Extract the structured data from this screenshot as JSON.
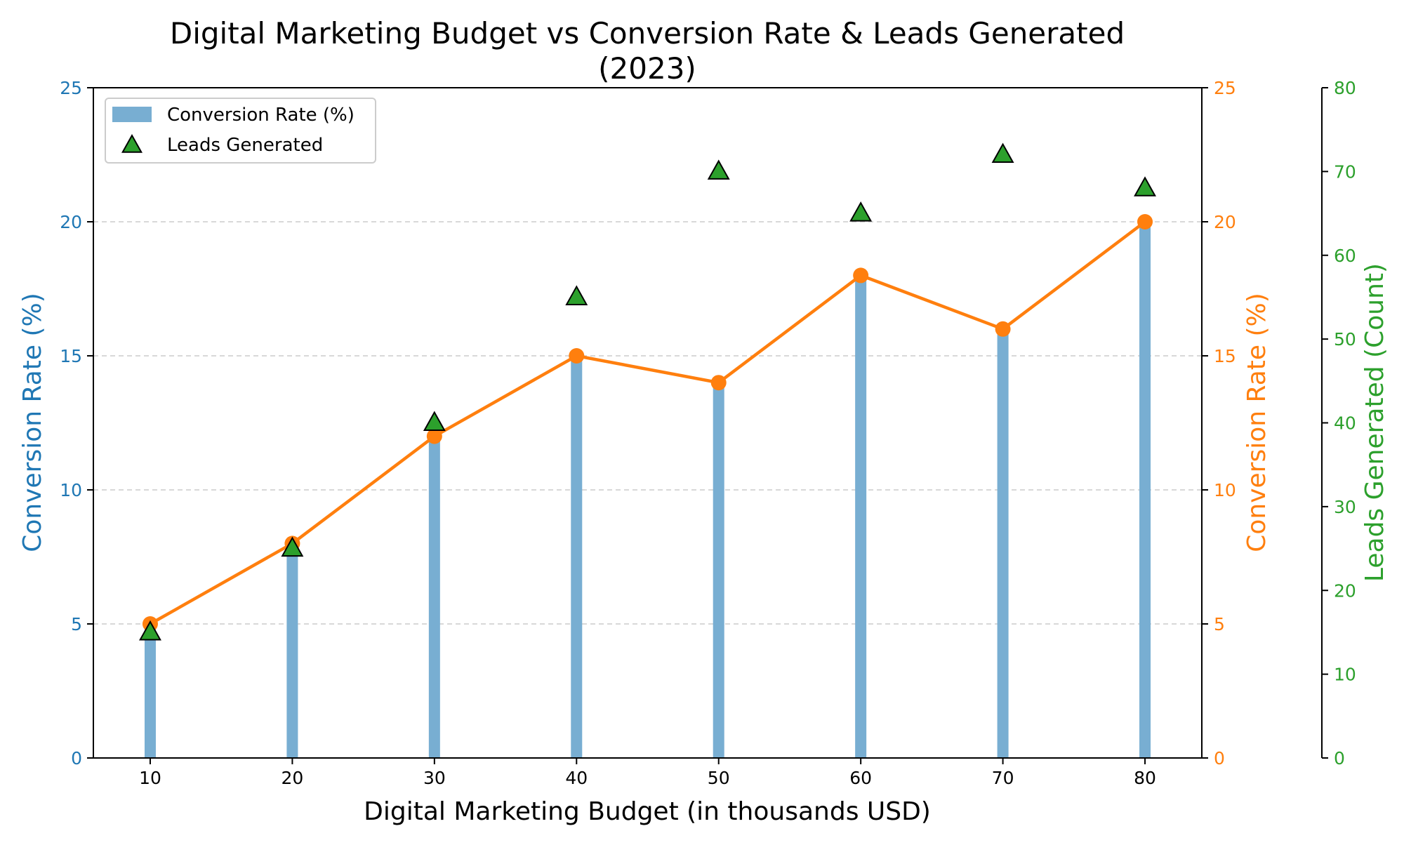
{
  "chart_data": {
    "type": "bar",
    "title": "Digital Marketing Budget vs Conversion Rate & Leads Generated\n(2023)",
    "xlabel": "Digital Marketing Budget (in thousands USD)",
    "ylabel_left": "Conversion Rate (%)",
    "ylabel_right": "Conversion Rate (%)",
    "ylabel_far_right": "Leads Generated (Count)",
    "x": [
      10,
      20,
      30,
      40,
      50,
      60,
      70,
      80
    ],
    "xlim": [
      6,
      84
    ],
    "ylim_left": [
      0,
      25
    ],
    "ylim_right": [
      0,
      25
    ],
    "ylim_far_right": [
      0,
      80
    ],
    "yticks_left": [
      0,
      5,
      10,
      15,
      20,
      25
    ],
    "yticks_far_right": [
      0,
      10,
      20,
      30,
      40,
      50,
      60,
      70,
      80
    ],
    "grid": "horizontal dashed",
    "legend_position": "upper left",
    "series": [
      {
        "name": "Conversion Rate (%)",
        "kind": "bar",
        "axis": "left",
        "color": "#78aed2",
        "values": [
          5,
          8,
          12,
          15,
          14,
          18,
          16,
          20
        ]
      },
      {
        "kind": "line",
        "axis": "right",
        "color": "#ff7f0e",
        "values": [
          5,
          8,
          12,
          15,
          14,
          18,
          16,
          20
        ]
      },
      {
        "name": "Leads Generated",
        "kind": "scatter",
        "marker": "triangle",
        "axis": "far_right",
        "color": "#2ca02c",
        "values": [
          15,
          25,
          40,
          55,
          70,
          65,
          72,
          68
        ]
      }
    ],
    "colors": {
      "left_axis": "#1f77b4",
      "right_axis": "#ff7f0e",
      "far_right_axis": "#2ca02c"
    }
  }
}
